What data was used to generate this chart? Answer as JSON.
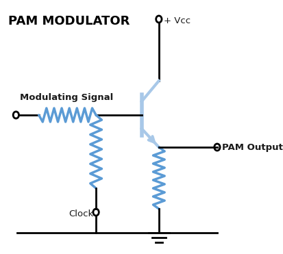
{
  "title": "PAM MODULATOR",
  "title_fontsize": 13,
  "title_fontweight": "bold",
  "title_color": "#000000",
  "bg_color": "#ffffff",
  "wire_color": "#000000",
  "blue_color": "#5b9bd5",
  "light_blue": "#a8c8e8",
  "labels": {
    "mod_signal": "Modulating Signal",
    "pam_output": "PAM Output",
    "vcc": "+ Vcc",
    "clock": "Clock"
  }
}
